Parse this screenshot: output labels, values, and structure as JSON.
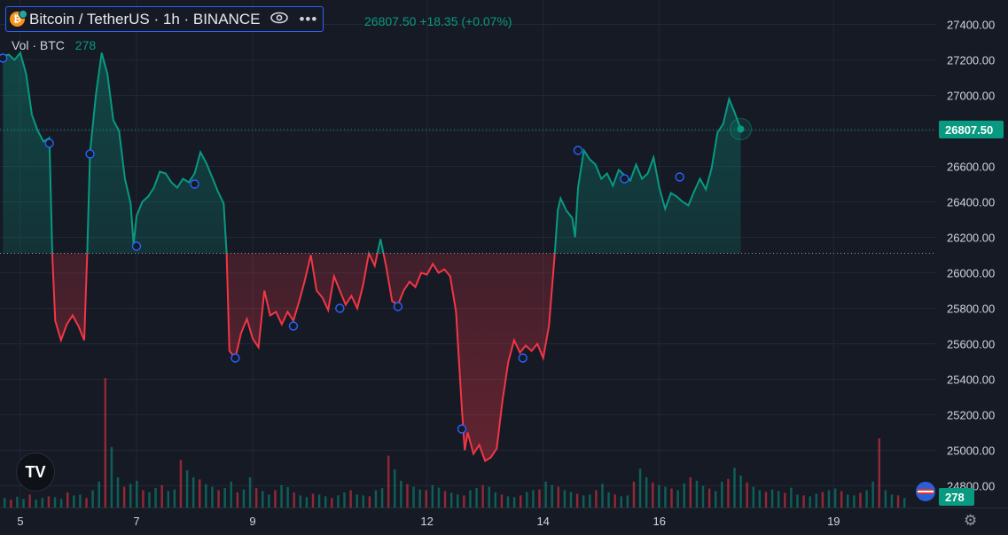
{
  "header": {
    "symbol": "Bitcoin / TetherUS · 1h · BINANCE",
    "coin_glyph": "₿",
    "eye_icon": "eye-icon",
    "more_icon": "more-icon",
    "more_glyph": "•••",
    "price_change": "26807.50  +18.35 (+0.07%)"
  },
  "volume_legend": {
    "label": "Vol · BTC",
    "value": "278"
  },
  "logo_text": "TV",
  "settings_glyph": "⚙",
  "colors": {
    "background": "#161a25",
    "up": "#089981",
    "down": "#f23645",
    "grid": "#232735",
    "marker": "#2962ff",
    "text": "#d1d4dc"
  },
  "chart_data": {
    "type": "line",
    "style": "baseline",
    "baseline": 26110,
    "last_price": 26807.5,
    "last_price_label": "26807.50",
    "ylim": [
      24700,
      27500
    ],
    "y_ticks": [
      "27400.00",
      "27200.00",
      "27000.00",
      "26800.00",
      "26600.00",
      "26400.00",
      "26200.00",
      "26000.00",
      "25800.00",
      "25600.00",
      "25400.00",
      "25200.00",
      "25000.00",
      "24800.00"
    ],
    "x_ticks": [
      {
        "label": "5",
        "x": 4.5
      },
      {
        "label": "7",
        "x": 6.5
      },
      {
        "label": "9",
        "x": 8.5
      },
      {
        "label": "12",
        "x": 11.5
      },
      {
        "label": "14",
        "x": 13.5
      },
      {
        "label": "16",
        "x": 15.5
      },
      {
        "label": "19",
        "x": 18.5
      }
    ],
    "xlim": [
      4.15,
      20.25
    ],
    "series": [
      {
        "values": [
          [
            4.2,
            27220
          ],
          [
            4.3,
            27230
          ],
          [
            4.4,
            27200
          ],
          [
            4.5,
            27240
          ],
          [
            4.6,
            27120
          ],
          [
            4.7,
            26890
          ],
          [
            4.8,
            26800
          ],
          [
            4.9,
            26740
          ],
          [
            5.0,
            26760
          ],
          [
            5.05,
            26100
          ],
          [
            5.1,
            25730
          ],
          [
            5.2,
            25620
          ],
          [
            5.3,
            25710
          ],
          [
            5.4,
            25760
          ],
          [
            5.5,
            25700
          ],
          [
            5.6,
            25620
          ],
          [
            5.65,
            26100
          ],
          [
            5.7,
            26680
          ],
          [
            5.8,
            27000
          ],
          [
            5.9,
            27240
          ],
          [
            6.0,
            27120
          ],
          [
            6.1,
            26860
          ],
          [
            6.2,
            26800
          ],
          [
            6.3,
            26530
          ],
          [
            6.4,
            26390
          ],
          [
            6.45,
            26160
          ],
          [
            6.5,
            26320
          ],
          [
            6.6,
            26400
          ],
          [
            6.7,
            26430
          ],
          [
            6.8,
            26480
          ],
          [
            6.9,
            26570
          ],
          [
            7.0,
            26560
          ],
          [
            7.1,
            26510
          ],
          [
            7.2,
            26480
          ],
          [
            7.3,
            26530
          ],
          [
            7.4,
            26510
          ],
          [
            7.5,
            26560
          ],
          [
            7.6,
            26680
          ],
          [
            7.7,
            26620
          ],
          [
            7.8,
            26540
          ],
          [
            7.9,
            26460
          ],
          [
            8.0,
            26390
          ],
          [
            8.05,
            26110
          ],
          [
            8.1,
            25560
          ],
          [
            8.2,
            25520
          ],
          [
            8.3,
            25660
          ],
          [
            8.4,
            25740
          ],
          [
            8.5,
            25630
          ],
          [
            8.6,
            25580
          ],
          [
            8.7,
            25900
          ],
          [
            8.8,
            25760
          ],
          [
            8.9,
            25780
          ],
          [
            9.0,
            25710
          ],
          [
            9.1,
            25780
          ],
          [
            9.2,
            25730
          ],
          [
            9.3,
            25840
          ],
          [
            9.4,
            25960
          ],
          [
            9.5,
            26100
          ],
          [
            9.6,
            25900
          ],
          [
            9.7,
            25860
          ],
          [
            9.8,
            25790
          ],
          [
            9.9,
            25980
          ],
          [
            10.0,
            25900
          ],
          [
            10.1,
            25820
          ],
          [
            10.2,
            25870
          ],
          [
            10.3,
            25800
          ],
          [
            10.4,
            25930
          ],
          [
            10.5,
            26110
          ],
          [
            10.6,
            26040
          ],
          [
            10.7,
            26190
          ],
          [
            10.8,
            26030
          ],
          [
            10.9,
            25840
          ],
          [
            11.0,
            25820
          ],
          [
            11.1,
            25900
          ],
          [
            11.2,
            25950
          ],
          [
            11.3,
            25920
          ],
          [
            11.4,
            26000
          ],
          [
            11.5,
            25990
          ],
          [
            11.6,
            26050
          ],
          [
            11.7,
            26000
          ],
          [
            11.8,
            26020
          ],
          [
            11.9,
            25980
          ],
          [
            12.0,
            25780
          ],
          [
            12.1,
            25240
          ],
          [
            12.15,
            25000
          ],
          [
            12.2,
            25100
          ],
          [
            12.3,
            24980
          ],
          [
            12.4,
            25030
          ],
          [
            12.5,
            24940
          ],
          [
            12.6,
            24960
          ],
          [
            12.7,
            25010
          ],
          [
            12.8,
            25280
          ],
          [
            12.9,
            25500
          ],
          [
            13.0,
            25620
          ],
          [
            13.1,
            25550
          ],
          [
            13.2,
            25590
          ],
          [
            13.3,
            25560
          ],
          [
            13.4,
            25600
          ],
          [
            13.5,
            25520
          ],
          [
            13.6,
            25700
          ],
          [
            13.7,
            26110
          ],
          [
            13.75,
            26350
          ],
          [
            13.8,
            26420
          ],
          [
            13.9,
            26350
          ],
          [
            14.0,
            26310
          ],
          [
            14.05,
            26200
          ],
          [
            14.1,
            26480
          ],
          [
            14.2,
            26690
          ],
          [
            14.3,
            26640
          ],
          [
            14.4,
            26610
          ],
          [
            14.5,
            26530
          ],
          [
            14.6,
            26560
          ],
          [
            14.7,
            26490
          ],
          [
            14.8,
            26580
          ],
          [
            14.9,
            26550
          ],
          [
            15.0,
            26520
          ],
          [
            15.1,
            26610
          ],
          [
            15.2,
            26530
          ],
          [
            15.3,
            26560
          ],
          [
            15.4,
            26650
          ],
          [
            15.5,
            26480
          ],
          [
            15.6,
            26360
          ],
          [
            15.7,
            26450
          ],
          [
            15.8,
            26430
          ],
          [
            15.9,
            26400
          ],
          [
            16.0,
            26380
          ],
          [
            16.1,
            26460
          ],
          [
            16.2,
            26530
          ],
          [
            16.3,
            26470
          ],
          [
            16.4,
            26590
          ],
          [
            16.5,
            26790
          ],
          [
            16.6,
            26840
          ],
          [
            16.7,
            26980
          ],
          [
            16.8,
            26900
          ],
          [
            16.9,
            26810
          ]
        ]
      }
    ],
    "markers": [
      [
        4.2,
        27210
      ],
      [
        5.0,
        26730
      ],
      [
        5.7,
        26670
      ],
      [
        6.5,
        26150
      ],
      [
        7.5,
        26500
      ],
      [
        8.2,
        25520
      ],
      [
        9.2,
        25700
      ],
      [
        10.0,
        25800
      ],
      [
        11.0,
        25810
      ],
      [
        12.1,
        25120
      ],
      [
        13.15,
        25520
      ],
      [
        14.1,
        26690
      ],
      [
        14.9,
        26530
      ],
      [
        15.85,
        26540
      ]
    ],
    "volume": {
      "max": 300,
      "values": [
        22,
        18,
        25,
        20,
        30,
        18,
        22,
        26,
        24,
        20,
        35,
        28,
        30,
        22,
        40,
        60,
        300,
        140,
        70,
        48,
        55,
        62,
        40,
        35,
        45,
        52,
        38,
        42,
        110,
        86,
        70,
        65,
        54,
        48,
        40,
        45,
        60,
        35,
        42,
        70,
        45,
        38,
        30,
        40,
        52,
        47,
        35,
        28,
        24,
        32,
        30,
        26,
        22,
        28,
        35,
        40,
        30,
        28,
        26,
        40,
        45,
        120,
        88,
        62,
        54,
        48,
        42,
        40,
        52,
        46,
        38,
        34,
        30,
        28,
        40,
        45,
        52,
        48,
        35,
        30,
        26,
        24,
        28,
        36,
        40,
        42,
        60,
        52,
        48,
        40,
        36,
        32,
        28,
        30,
        40,
        55,
        35,
        30,
        26,
        28,
        60,
        90,
        70,
        58,
        52,
        48,
        44,
        40,
        56,
        70,
        62,
        50,
        44,
        38,
        60,
        66,
        92,
        74,
        58,
        48,
        40,
        36,
        42,
        38,
        34,
        46,
        30,
        28,
        26,
        32,
        36,
        40,
        44,
        38,
        30,
        28,
        34,
        40,
        60,
        160,
        40,
        30,
        28,
        22
      ]
    }
  }
}
